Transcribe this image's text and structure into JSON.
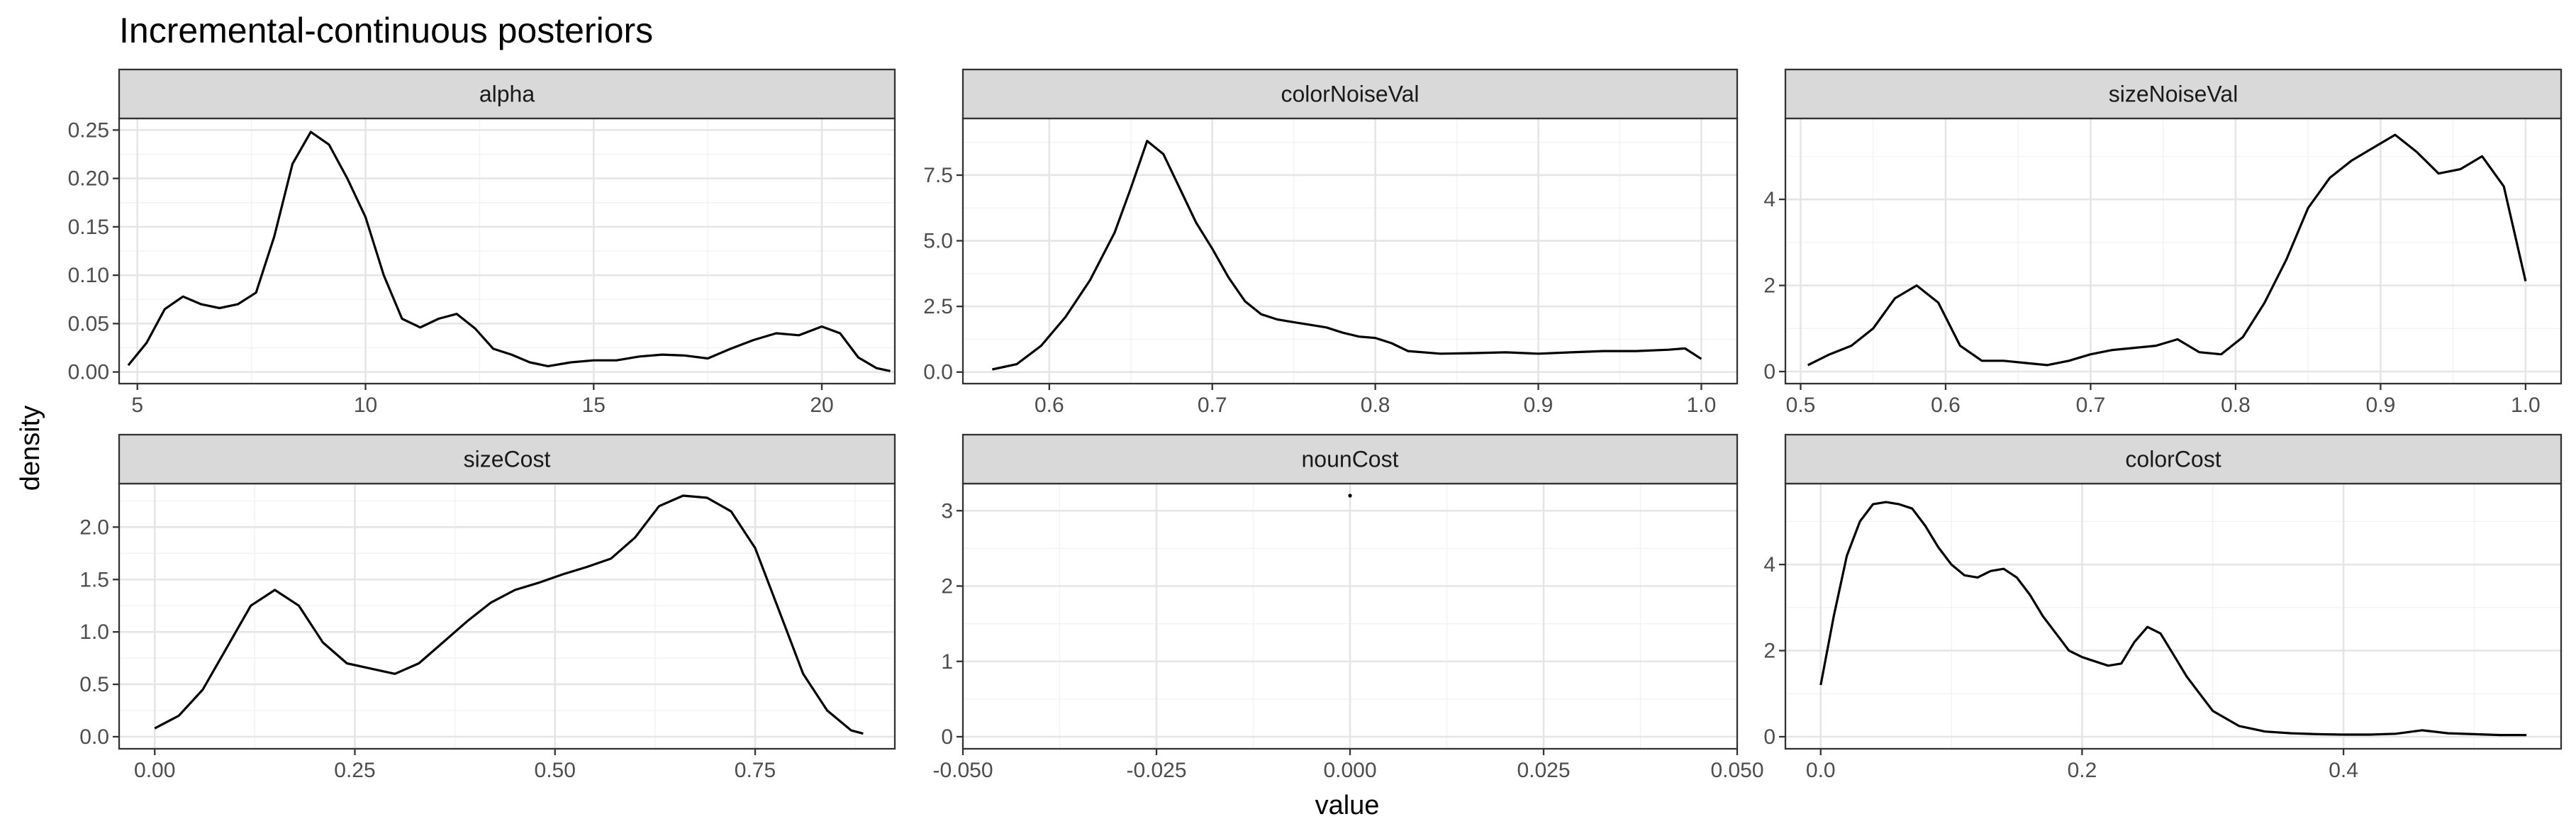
{
  "chart_data": {
    "type": "line",
    "title": "Incremental-continuous posteriors",
    "xlabel": "value",
    "ylabel": "density",
    "facets": [
      {
        "name": "alpha",
        "xlim": [
          4.6,
          21.6
        ],
        "ylim": [
          -0.012,
          0.262
        ],
        "xticks": [
          5,
          10,
          15,
          20
        ],
        "xtick_labels": [
          "5",
          "10",
          "15",
          "20"
        ],
        "xminor": [
          7.5,
          12.5,
          17.5
        ],
        "yticks": [
          0,
          0.05,
          0.1,
          0.15,
          0.2,
          0.25
        ],
        "ytick_labels": [
          "0.00",
          "0.05",
          "0.10",
          "0.15",
          "0.20",
          "0.25"
        ],
        "yminor": [
          0.025,
          0.075,
          0.125,
          0.175,
          0.225
        ],
        "x": [
          4.8,
          5.2,
          5.6,
          6.0,
          6.4,
          6.8,
          7.2,
          7.6,
          8.0,
          8.4,
          8.8,
          9.2,
          9.6,
          10.0,
          10.4,
          10.8,
          11.2,
          11.6,
          12.0,
          12.4,
          12.8,
          13.2,
          13.6,
          14.0,
          14.5,
          15.0,
          15.5,
          16.0,
          16.5,
          17.0,
          17.5,
          18.0,
          18.5,
          19.0,
          19.5,
          20.0,
          20.4,
          20.8,
          21.2,
          21.5
        ],
        "y": [
          0.007,
          0.03,
          0.065,
          0.078,
          0.07,
          0.066,
          0.07,
          0.082,
          0.14,
          0.215,
          0.248,
          0.235,
          0.2,
          0.16,
          0.1,
          0.055,
          0.046,
          0.055,
          0.06,
          0.045,
          0.024,
          0.018,
          0.01,
          0.006,
          0.01,
          0.012,
          0.012,
          0.016,
          0.018,
          0.017,
          0.014,
          0.024,
          0.033,
          0.04,
          0.038,
          0.047,
          0.04,
          0.015,
          0.004,
          0.001
        ]
      },
      {
        "name": "colorNoiseVal",
        "xlim": [
          0.547,
          1.022
        ],
        "ylim": [
          -0.44,
          9.66
        ],
        "xticks": [
          0.6,
          0.7,
          0.8,
          0.9,
          1.0
        ],
        "xtick_labels": [
          "0.6",
          "0.7",
          "0.8",
          "0.9",
          "1.0"
        ],
        "xminor": [
          0.65,
          0.75,
          0.85,
          0.95
        ],
        "yticks": [
          0,
          2.5,
          5.0,
          7.5
        ],
        "ytick_labels": [
          "0.0",
          "2.5",
          "5.0",
          "7.5"
        ],
        "yminor": [
          1.25,
          3.75,
          6.25,
          8.75
        ],
        "x": [
          0.565,
          0.58,
          0.595,
          0.61,
          0.625,
          0.64,
          0.65,
          0.66,
          0.67,
          0.68,
          0.69,
          0.7,
          0.71,
          0.72,
          0.73,
          0.74,
          0.75,
          0.76,
          0.77,
          0.78,
          0.79,
          0.8,
          0.81,
          0.82,
          0.84,
          0.86,
          0.88,
          0.9,
          0.92,
          0.94,
          0.96,
          0.98,
          0.99,
          1.0
        ],
        "y": [
          0.1,
          0.3,
          1.0,
          2.1,
          3.5,
          5.3,
          7.0,
          8.8,
          8.3,
          7.0,
          5.7,
          4.7,
          3.6,
          2.7,
          2.2,
          2.0,
          1.9,
          1.8,
          1.7,
          1.5,
          1.35,
          1.3,
          1.1,
          0.8,
          0.7,
          0.72,
          0.75,
          0.7,
          0.75,
          0.8,
          0.8,
          0.85,
          0.9,
          0.5
        ]
      },
      {
        "name": "sizeNoiseVal",
        "xlim": [
          0.4895,
          1.0245
        ],
        "ylim": [
          -0.28,
          5.88
        ],
        "xticks": [
          0.5,
          0.6,
          0.7,
          0.8,
          0.9,
          1.0
        ],
        "xtick_labels": [
          "0.5",
          "0.6",
          "0.7",
          "0.8",
          "0.9",
          "1.0"
        ],
        "xminor": [
          0.55,
          0.65,
          0.75,
          0.85,
          0.95
        ],
        "yticks": [
          0,
          2,
          4
        ],
        "ytick_labels": [
          "0",
          "2",
          "4"
        ],
        "yminor": [
          1,
          3,
          5
        ],
        "x": [
          0.505,
          0.52,
          0.535,
          0.55,
          0.565,
          0.58,
          0.595,
          0.61,
          0.625,
          0.64,
          0.655,
          0.67,
          0.685,
          0.7,
          0.715,
          0.73,
          0.745,
          0.76,
          0.775,
          0.79,
          0.805,
          0.82,
          0.835,
          0.85,
          0.865,
          0.88,
          0.895,
          0.91,
          0.925,
          0.94,
          0.955,
          0.97,
          0.985,
          1.0
        ],
        "y": [
          0.15,
          0.4,
          0.6,
          1.0,
          1.7,
          2.0,
          1.6,
          0.6,
          0.25,
          0.25,
          0.2,
          0.15,
          0.25,
          0.4,
          0.5,
          0.55,
          0.6,
          0.75,
          0.45,
          0.4,
          0.8,
          1.6,
          2.6,
          3.8,
          4.5,
          4.9,
          5.2,
          5.5,
          5.1,
          4.6,
          4.7,
          5.0,
          4.3,
          2.1
        ]
      },
      {
        "name": "sizeCost",
        "xlim": [
          -0.0445,
          0.9245
        ],
        "ylim": [
          -0.115,
          2.415
        ],
        "xticks": [
          0,
          0.25,
          0.5,
          0.75
        ],
        "xtick_labels": [
          "0.00",
          "0.25",
          "0.50",
          "0.75"
        ],
        "xminor": [
          0.125,
          0.375,
          0.625,
          0.875
        ],
        "yticks": [
          0,
          0.5,
          1.0,
          1.5,
          2.0
        ],
        "ytick_labels": [
          "0.0",
          "0.5",
          "1.0",
          "1.5",
          "2.0"
        ],
        "yminor": [
          0.25,
          0.75,
          1.25,
          1.75,
          2.25
        ],
        "x": [
          0.0,
          0.03,
          0.06,
          0.09,
          0.12,
          0.15,
          0.18,
          0.21,
          0.24,
          0.27,
          0.3,
          0.33,
          0.36,
          0.39,
          0.42,
          0.45,
          0.48,
          0.51,
          0.54,
          0.57,
          0.6,
          0.63,
          0.66,
          0.69,
          0.72,
          0.75,
          0.78,
          0.81,
          0.84,
          0.87,
          0.885
        ],
        "y": [
          0.08,
          0.2,
          0.45,
          0.85,
          1.25,
          1.4,
          1.25,
          0.9,
          0.7,
          0.65,
          0.6,
          0.7,
          0.9,
          1.1,
          1.28,
          1.4,
          1.47,
          1.55,
          1.62,
          1.7,
          1.9,
          2.2,
          2.3,
          2.28,
          2.15,
          1.8,
          1.2,
          0.6,
          0.25,
          0.06,
          0.03
        ]
      },
      {
        "name": "nounCost",
        "xlim": [
          -0.05,
          0.05
        ],
        "ylim": [
          -0.16,
          3.36
        ],
        "xticks": [
          -0.05,
          -0.025,
          0,
          0.025,
          0.05
        ],
        "xtick_labels": [
          "-0.050",
          "-0.025",
          "0.000",
          "0.025",
          "0.050"
        ],
        "xminor": [
          -0.0375,
          -0.0125,
          0.0125,
          0.0375
        ],
        "yticks": [
          0,
          1,
          2,
          3
        ],
        "ytick_labels": [
          "0",
          "1",
          "2",
          "3"
        ],
        "yminor": [
          0.5,
          1.5,
          2.5
        ],
        "x": [
          0
        ],
        "y": [
          3.2
        ]
      },
      {
        "name": "colorCost",
        "xlim": [
          -0.027,
          0.5665
        ],
        "ylim": [
          -0.28,
          5.88
        ],
        "xticks": [
          0,
          0.2,
          0.4
        ],
        "xtick_labels": [
          "0.0",
          "0.2",
          "0.4"
        ],
        "xminor": [
          0.1,
          0.3,
          0.5
        ],
        "yticks": [
          0,
          2,
          4
        ],
        "ytick_labels": [
          "0",
          "2",
          "4"
        ],
        "yminor": [
          1,
          3,
          5
        ],
        "x": [
          0.0,
          0.01,
          0.02,
          0.03,
          0.04,
          0.05,
          0.06,
          0.07,
          0.08,
          0.09,
          0.1,
          0.11,
          0.12,
          0.13,
          0.14,
          0.15,
          0.16,
          0.17,
          0.18,
          0.19,
          0.2,
          0.21,
          0.22,
          0.23,
          0.24,
          0.25,
          0.26,
          0.27,
          0.28,
          0.29,
          0.3,
          0.32,
          0.34,
          0.36,
          0.38,
          0.4,
          0.42,
          0.44,
          0.46,
          0.48,
          0.5,
          0.52,
          0.54
        ],
        "y": [
          1.2,
          2.8,
          4.2,
          5.0,
          5.4,
          5.45,
          5.4,
          5.3,
          4.9,
          4.4,
          4.0,
          3.75,
          3.7,
          3.85,
          3.9,
          3.7,
          3.3,
          2.8,
          2.4,
          2.0,
          1.85,
          1.75,
          1.65,
          1.7,
          2.2,
          2.55,
          2.4,
          1.9,
          1.4,
          1.0,
          0.6,
          0.25,
          0.12,
          0.08,
          0.06,
          0.05,
          0.05,
          0.07,
          0.15,
          0.08,
          0.06,
          0.04,
          0.04
        ]
      }
    ]
  }
}
